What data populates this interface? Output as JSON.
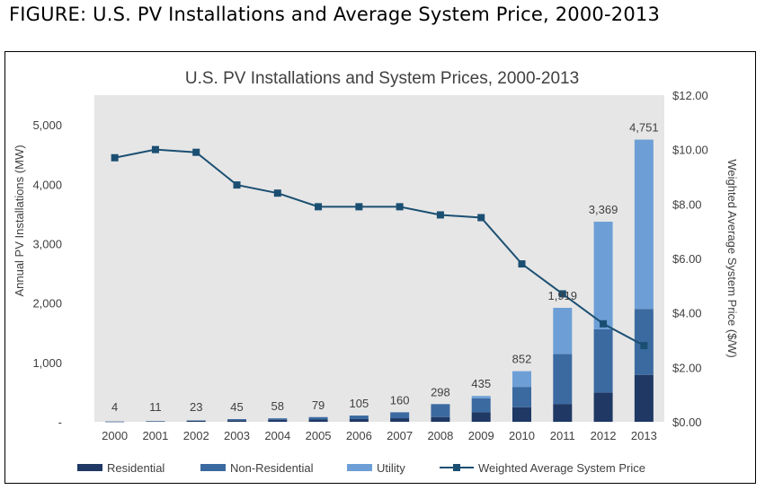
{
  "figure_heading": "FIGURE: U.S. PV Installations and Average System Price, 2000-2013",
  "chart_data": {
    "type": "bar",
    "stacked": true,
    "title": "U.S. PV Installations and System Prices, 2000-2013",
    "xlabel": "",
    "ylabel": "Annual PV Installations (MW)",
    "y2label": "Weighted Average System Price ($/W)",
    "ylim": [
      0,
      5500
    ],
    "y2lim": [
      0,
      12
    ],
    "yticks": [
      0,
      1000,
      2000,
      3000,
      4000,
      5000
    ],
    "ytick_labels": [
      "-",
      "1,000",
      "2,000",
      "3,000",
      "4,000",
      "5,000"
    ],
    "y2ticks": [
      0,
      2,
      4,
      6,
      8,
      10,
      12
    ],
    "y2tick_labels": [
      "$0.00",
      "$2.00",
      "$4.00",
      "$6.00",
      "$8.00",
      "$10.00",
      "$12.00"
    ],
    "categories": [
      "2000",
      "2001",
      "2002",
      "2003",
      "2004",
      "2005",
      "2006",
      "2007",
      "2008",
      "2009",
      "2010",
      "2011",
      "2012",
      "2013"
    ],
    "totals": [
      4,
      11,
      23,
      45,
      58,
      79,
      105,
      160,
      298,
      435,
      852,
      1919,
      3369,
      4751
    ],
    "total_labels": [
      "4",
      "11",
      "23",
      "45",
      "58",
      "79",
      "105",
      "160",
      "298",
      "435",
      "852",
      "1,919",
      "3,369",
      "4,751"
    ],
    "series": [
      {
        "name": "Residential",
        "color": "#1f3864",
        "values": [
          3,
          7,
          15,
          26,
          35,
          38,
          45,
          60,
          80,
          160,
          245,
          300,
          490,
          790
        ]
      },
      {
        "name": "Non-Residential",
        "color": "#3b6aa0",
        "values": [
          1,
          4,
          8,
          19,
          23,
          41,
          60,
          100,
          218,
          235,
          342,
          840,
          1070,
          1110
        ]
      },
      {
        "name": "Utility",
        "color": "#6d9fd6",
        "values": [
          0,
          0,
          0,
          0,
          0,
          0,
          0,
          0,
          0,
          40,
          265,
          779,
          1809,
          2851
        ]
      }
    ],
    "line_series": {
      "name": "Weighted Average System Price",
      "color": "#1b4f72",
      "axis": "right",
      "values": [
        9.7,
        10.0,
        9.9,
        8.7,
        8.4,
        7.9,
        7.9,
        7.9,
        7.6,
        7.5,
        5.8,
        4.7,
        3.6,
        2.8
      ]
    },
    "grid": false,
    "legend": "bottom"
  }
}
